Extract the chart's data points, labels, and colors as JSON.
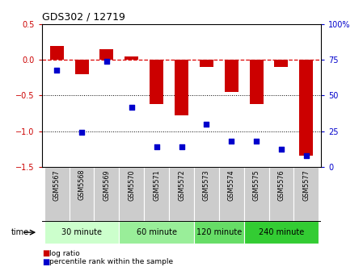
{
  "title": "GDS302 / 12719",
  "samples": [
    "GSM5567",
    "GSM5568",
    "GSM5569",
    "GSM5570",
    "GSM5571",
    "GSM5572",
    "GSM5573",
    "GSM5574",
    "GSM5575",
    "GSM5576",
    "GSM5577"
  ],
  "log_ratio": [
    0.2,
    -0.2,
    0.15,
    0.05,
    -0.62,
    -0.78,
    -0.1,
    -0.45,
    -0.62,
    -0.1,
    -1.35
  ],
  "percentile_rank": [
    68,
    24,
    74,
    42,
    14,
    14,
    30,
    18,
    18,
    12,
    8
  ],
  "groups": [
    {
      "label": "30 minute",
      "samples": [
        0,
        1,
        2
      ],
      "color": "#ccffcc"
    },
    {
      "label": "60 minute",
      "samples": [
        3,
        4,
        5
      ],
      "color": "#99ee99"
    },
    {
      "label": "120 minute",
      "samples": [
        6,
        7
      ],
      "color": "#66dd66"
    },
    {
      "label": "240 minute",
      "samples": [
        8,
        9,
        10
      ],
      "color": "#33cc33"
    }
  ],
  "bar_color": "#cc0000",
  "dot_color": "#0000cc",
  "ylim_left": [
    -1.5,
    0.5
  ],
  "ylim_right": [
    0,
    100
  ],
  "yticks_left": [
    -1.5,
    -1.0,
    -0.5,
    0.0,
    0.5
  ],
  "yticks_right": [
    0,
    25,
    50,
    75,
    100
  ],
  "hline_color": "#dd0000",
  "dotline_color": "black",
  "background_color": "#ffffff",
  "tick_label_color_left": "#cc0000",
  "tick_label_color_right": "#0000cc",
  "sample_box_color": "#cccccc",
  "legend_bar_color": "#cc0000",
  "legend_dot_color": "#0000cc"
}
